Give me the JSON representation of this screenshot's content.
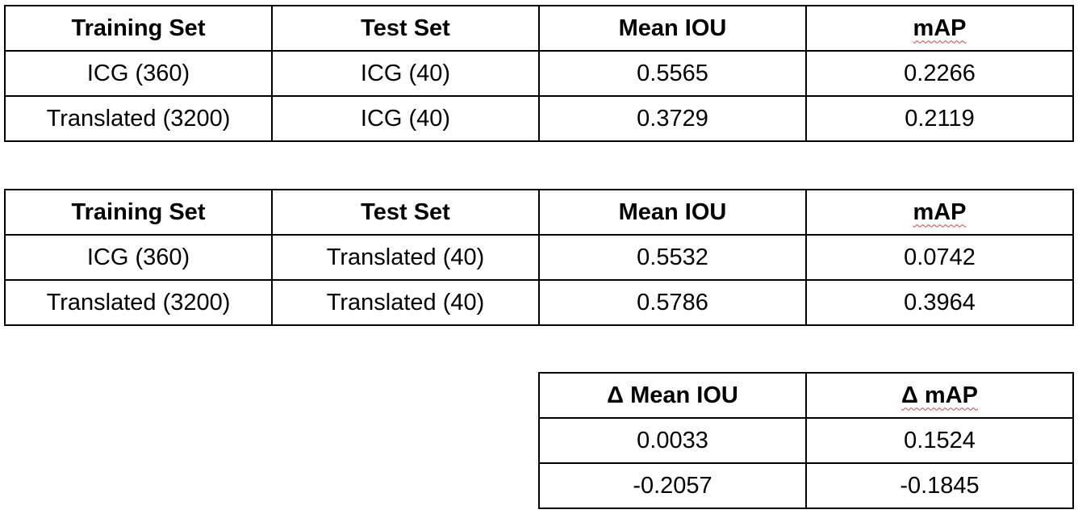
{
  "tables": [
    {
      "headers": [
        "Training Set",
        "Test Set",
        "Mean IOU",
        "mAP"
      ],
      "rows": [
        [
          "ICG (360)",
          "ICG (40)",
          "0.5565",
          "0.2266"
        ],
        [
          "Translated (3200)",
          "ICG (40)",
          "0.3729",
          "0.2119"
        ]
      ]
    },
    {
      "headers": [
        "Training Set",
        "Test Set",
        "Mean IOU",
        "mAP"
      ],
      "rows": [
        [
          "ICG (360)",
          "Translated (40)",
          "0.5532",
          "0.0742"
        ],
        [
          "Translated (3200)",
          "Translated (40)",
          "0.5786",
          "0.3964"
        ]
      ]
    },
    {
      "headers": [
        "Δ Mean IOU",
        "Δ mAP"
      ],
      "rows": [
        [
          "0.0033",
          "0.1524"
        ],
        [
          "-0.2057",
          "-0.1845"
        ]
      ]
    }
  ],
  "colors": {
    "border": "#000000",
    "spellcheck_underline": "#d04040"
  }
}
